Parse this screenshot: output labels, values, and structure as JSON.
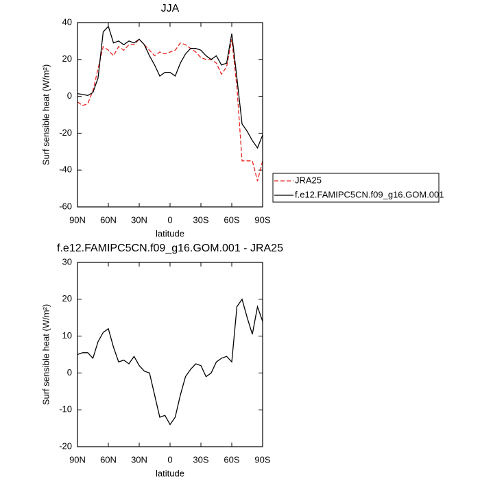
{
  "chart_data": [
    {
      "type": "line",
      "title": "JJA",
      "xlabel": "latitude",
      "ylabel": "Surf sensible heat (W/m²)",
      "x": [
        90,
        85,
        80,
        75,
        70,
        65,
        60,
        55,
        50,
        45,
        40,
        35,
        30,
        25,
        20,
        15,
        10,
        5,
        0,
        -5,
        -10,
        -15,
        -20,
        -25,
        -30,
        -35,
        -40,
        -45,
        -50,
        -55,
        -60,
        -65,
        -70,
        -75,
        -80,
        -85,
        -90
      ],
      "xlim": [
        90,
        -90
      ],
      "xticks": [
        {
          "value": 90,
          "label": "90N"
        },
        {
          "value": 60,
          "label": "60N"
        },
        {
          "value": 30,
          "label": "30N"
        },
        0,
        {
          "value": -30,
          "label": "30S"
        },
        {
          "value": -60,
          "label": "60S"
        },
        {
          "value": -90,
          "label": "90S"
        }
      ],
      "ylim": [
        -60,
        40
      ],
      "yticks": [
        -60,
        -40,
        -20,
        0,
        20,
        40
      ],
      "legend": "right",
      "series": [
        {
          "name": "JRA25",
          "color": "#e8231e",
          "style": "dashed",
          "values": [
            -3,
            -5,
            -4,
            3,
            15,
            27,
            25,
            22,
            27,
            25,
            28,
            28,
            31,
            28,
            25,
            22,
            24,
            23,
            24,
            25,
            29,
            28,
            26,
            24,
            21,
            20,
            20,
            18,
            12,
            16,
            31,
            5,
            -35,
            -35,
            -35,
            -46,
            -35
          ]
        },
        {
          "name": "f.e12.FAMIPC5CN.f09_g16.GOM.001",
          "color": "#000000",
          "style": "solid",
          "values": [
            1.5,
            1,
            0.5,
            2,
            10,
            35,
            38,
            29,
            30,
            28,
            30,
            29,
            31,
            28,
            22,
            17,
            11,
            13,
            13,
            11,
            18,
            23,
            26,
            26,
            25,
            22,
            20,
            22,
            17,
            18,
            34,
            10,
            -15,
            -19,
            -24,
            -28,
            -21
          ]
        }
      ]
    },
    {
      "type": "line",
      "title": "f.e12.FAMIPC5CN.f09_g16.GOM.001 - JRA25",
      "xlabel": "latitude",
      "ylabel": "Surf sensible heat (W/m²)",
      "x": [
        90,
        85,
        80,
        75,
        70,
        65,
        60,
        55,
        50,
        45,
        40,
        35,
        30,
        25,
        20,
        15,
        10,
        5,
        0,
        -5,
        -10,
        -15,
        -20,
        -25,
        -30,
        -35,
        -40,
        -45,
        -50,
        -55,
        -60,
        -65,
        -70,
        -75,
        -80,
        -85,
        -90
      ],
      "xlim": [
        90,
        -90
      ],
      "xticks": [
        {
          "value": 90,
          "label": "90N"
        },
        {
          "value": 60,
          "label": "60N"
        },
        {
          "value": 30,
          "label": "30N"
        },
        0,
        {
          "value": -30,
          "label": "30S"
        },
        {
          "value": -60,
          "label": "60S"
        },
        {
          "value": -90,
          "label": "90S"
        }
      ],
      "ylim": [
        -20,
        30
      ],
      "yticks": [
        -20,
        -10,
        0,
        10,
        20,
        30
      ],
      "series": [
        {
          "color": "#000000",
          "style": "solid",
          "values": [
            5,
            5.5,
            5.5,
            4,
            8.5,
            11,
            12,
            7,
            3,
            3.5,
            2.5,
            4.5,
            2,
            0.5,
            0,
            -6,
            -12,
            -11.5,
            -14,
            -12,
            -6,
            -1,
            1,
            2.5,
            2,
            -1,
            0,
            3,
            4,
            4.5,
            3,
            18,
            20,
            15,
            10.5,
            18,
            14
          ]
        }
      ]
    }
  ]
}
